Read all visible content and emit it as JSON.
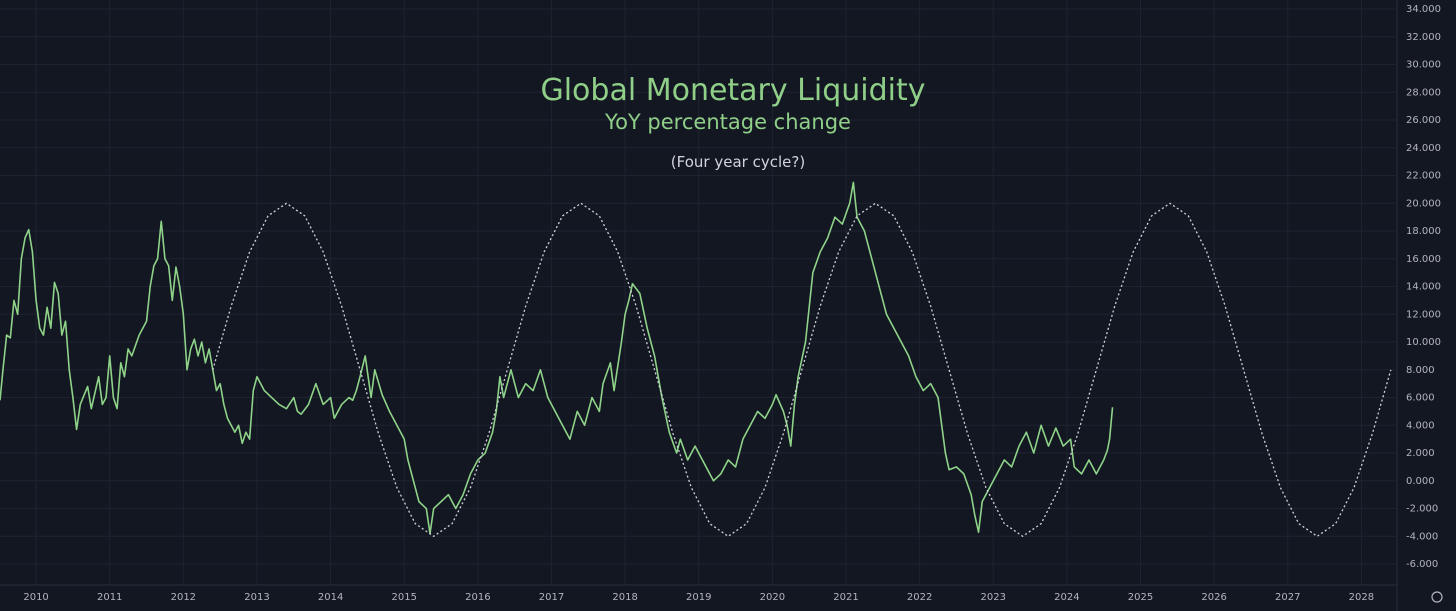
{
  "chart_data": {
    "type": "line",
    "title": "Global Monetary Liquidity",
    "subtitle": "YoY percentage change",
    "annotation": "(Four year cycle?)",
    "xlim": [
      2009.51,
      2028.47
    ],
    "xticks": [
      2010,
      2011,
      2012,
      2013,
      2014,
      2015,
      2016,
      2017,
      2018,
      2019,
      2020,
      2021,
      2022,
      2023,
      2024,
      2025,
      2026,
      2027,
      2028
    ],
    "ylim": [
      -7.51,
      34.65
    ],
    "yticks": [
      {
        "value": -6,
        "label": "-6.000"
      },
      {
        "value": -4,
        "label": "-4.000"
      },
      {
        "value": -2,
        "label": "-2.000"
      },
      {
        "value": 0,
        "label": "0.000"
      },
      {
        "value": 2,
        "label": "2.000"
      },
      {
        "value": 4,
        "label": "4.000"
      },
      {
        "value": 6,
        "label": "6.000"
      },
      {
        "value": 8,
        "label": "8.000"
      },
      {
        "value": 10,
        "label": "10.000"
      },
      {
        "value": 12,
        "label": "12.000"
      },
      {
        "value": 14,
        "label": "14.000"
      },
      {
        "value": 16,
        "label": "16.000"
      },
      {
        "value": 18,
        "label": "18.000"
      },
      {
        "value": 20,
        "label": "20.000"
      },
      {
        "value": 22,
        "label": "22.000"
      },
      {
        "value": 24,
        "label": "24.000"
      },
      {
        "value": 26,
        "label": "26.000"
      },
      {
        "value": 28,
        "label": "28.000"
      },
      {
        "value": 30,
        "label": "30.000"
      },
      {
        "value": 32,
        "label": "32.000"
      },
      {
        "value": 34,
        "label": "34.000"
      }
    ],
    "grid": true,
    "series": [
      {
        "color": "#8fd389",
        "line_style": "solid",
        "x": [
          2009.51,
          2009.55,
          2009.6,
          2009.65,
          2009.7,
          2009.75,
          2009.8,
          2009.85,
          2009.9,
          2009.95,
          2010.0,
          2010.05,
          2010.1,
          2010.15,
          2010.2,
          2010.25,
          2010.3,
          2010.35,
          2010.4,
          2010.45,
          2010.5,
          2010.55,
          2010.6,
          2010.7,
          2010.75,
          2010.85,
          2010.9,
          2010.95,
          2011.0,
          2011.05,
          2011.1,
          2011.15,
          2011.2,
          2011.25,
          2011.3,
          2011.4,
          2011.5,
          2011.55,
          2011.6,
          2011.65,
          2011.7,
          2011.75,
          2011.8,
          2011.85,
          2011.9,
          2011.95,
          2012.0,
          2012.05,
          2012.1,
          2012.15,
          2012.2,
          2012.25,
          2012.3,
          2012.35,
          2012.4,
          2012.45,
          2012.5,
          2012.55,
          2012.6,
          2012.7,
          2012.75,
          2012.8,
          2012.85,
          2012.9,
          2012.95,
          2013.0,
          2013.1,
          2013.2,
          2013.3,
          2013.4,
          2013.5,
          2013.55,
          2013.6,
          2013.7,
          2013.8,
          2013.9,
          2014.0,
          2014.05,
          2014.15,
          2014.25,
          2014.3,
          2014.35,
          2014.4,
          2014.47,
          2014.55,
          2014.6,
          2014.7,
          2014.8,
          2014.9,
          2015.0,
          2015.05,
          2015.1,
          2015.15,
          2015.2,
          2015.3,
          2015.35,
          2015.4,
          2015.5,
          2015.6,
          2015.7,
          2015.8,
          2015.9,
          2016.0,
          2016.1,
          2016.2,
          2016.25,
          2016.3,
          2016.35,
          2016.45,
          2016.55,
          2016.65,
          2016.75,
          2016.85,
          2016.95,
          2017.0,
          2017.1,
          2017.2,
          2017.25,
          2017.35,
          2017.45,
          2017.55,
          2017.65,
          2017.7,
          2017.8,
          2017.85,
          2017.95,
          2018.0,
          2018.05,
          2018.1,
          2018.2,
          2018.3,
          2018.4,
          2018.5,
          2018.6,
          2018.7,
          2018.75,
          2018.85,
          2018.95,
          2019.05,
          2019.15,
          2019.2,
          2019.3,
          2019.4,
          2019.5,
          2019.6,
          2019.7,
          2019.8,
          2019.9,
          2020.0,
          2020.05,
          2020.15,
          2020.2,
          2020.25,
          2020.3,
          2020.35,
          2020.45,
          2020.5,
          2020.55,
          2020.65,
          2020.75,
          2020.85,
          2020.95,
          2021.05,
          2021.1,
          2021.15,
          2021.25,
          2021.35,
          2021.45,
          2021.55,
          2021.65,
          2021.75,
          2021.85,
          2021.95,
          2022.05,
          2022.15,
          2022.25,
          2022.3,
          2022.35,
          2022.4,
          2022.5,
          2022.6,
          2022.7,
          2022.75,
          2022.8,
          2022.85,
          2022.95,
          2023.05,
          2023.15,
          2023.25,
          2023.35,
          2023.45,
          2023.55,
          2023.65,
          2023.75,
          2023.85,
          2023.95,
          2024.05,
          2024.1,
          2024.2,
          2024.3,
          2024.4,
          2024.5,
          2024.55,
          2024.58,
          2024.62
        ],
        "values": [
          5.8,
          8,
          10.5,
          10.3,
          13,
          12,
          16,
          17.5,
          18.1,
          16.5,
          13,
          11,
          10.5,
          12.5,
          11,
          14.3,
          13.5,
          10.5,
          11.5,
          8,
          6,
          3.7,
          5.5,
          6.8,
          5.2,
          7.5,
          5.5,
          6,
          9,
          6,
          5.2,
          8.5,
          7.5,
          9.5,
          9,
          10.5,
          11.5,
          14,
          15.5,
          16,
          18.7,
          16,
          15.5,
          13,
          15.4,
          14,
          12,
          8,
          9.5,
          10.2,
          9,
          10,
          8.5,
          9.5,
          8,
          6.5,
          7,
          5.5,
          4.5,
          3.5,
          4,
          2.7,
          3.5,
          3,
          6.5,
          7.5,
          6.5,
          6,
          5.5,
          5.2,
          6,
          5,
          4.8,
          5.5,
          7,
          5.5,
          6,
          4.5,
          5.5,
          6,
          5.8,
          6.5,
          7.5,
          9,
          6,
          8,
          6.2,
          5,
          4,
          3,
          1.5,
          0.5,
          -0.5,
          -1.5,
          -2,
          -3.8,
          -2,
          -1.5,
          -1,
          -2,
          -1,
          0.5,
          1.5,
          2,
          3.5,
          5,
          7.5,
          6,
          8,
          6,
          7,
          6.5,
          8,
          6,
          5.5,
          4.5,
          3.5,
          3,
          5,
          4,
          6,
          5,
          7,
          8.5,
          6.5,
          10,
          12,
          13,
          14.2,
          13.5,
          11,
          9,
          6,
          3.5,
          2,
          3,
          1.5,
          2.5,
          1.5,
          0.5,
          0,
          0.5,
          1.5,
          1,
          3,
          4,
          5,
          4.5,
          5.5,
          6.2,
          5,
          4,
          2.5,
          5.5,
          7.5,
          10,
          12.5,
          15,
          16.5,
          17.5,
          19,
          18.5,
          20,
          21.5,
          19,
          18,
          16,
          14,
          12,
          11,
          10,
          9,
          7.5,
          6.5,
          7,
          6,
          4,
          2,
          0.8,
          1,
          0.5,
          -1,
          -2.5,
          -3.7,
          -1.5,
          -0.5,
          0.5,
          1.5,
          1,
          2.5,
          3.5,
          2,
          4,
          2.5,
          3.8,
          2.5,
          3,
          1,
          0.5,
          1.5,
          0.5,
          1.5,
          2.2,
          3,
          5.3
        ]
      },
      {
        "color": "#d1d4dc",
        "line_style": "dotted",
        "x": [
          2012.4,
          2012.65,
          2012.9,
          2013.15,
          2013.4,
          2013.65,
          2013.9,
          2014.15,
          2014.4,
          2014.65,
          2014.9,
          2015.15,
          2015.4,
          2015.65,
          2015.9,
          2016.15,
          2016.4,
          2016.65,
          2016.9,
          2017.15,
          2017.4,
          2017.65,
          2017.9,
          2018.15,
          2018.4,
          2018.65,
          2018.9,
          2019.15,
          2019.4,
          2019.65,
          2019.9,
          2020.15,
          2020.4,
          2020.65,
          2020.9,
          2021.15,
          2021.4,
          2021.65,
          2021.9,
          2022.15,
          2022.4,
          2022.65,
          2022.9,
          2023.15,
          2023.4,
          2023.65,
          2023.9,
          2024.15,
          2024.4,
          2024.65,
          2024.9,
          2025.15,
          2025.4,
          2025.65,
          2025.9,
          2026.15,
          2026.4,
          2026.65,
          2026.9,
          2027.15,
          2027.4,
          2027.65,
          2027.9,
          2028.15,
          2028.4
        ],
        "values": [
          8,
          12.59,
          16.49,
          19.09,
          20,
          19.09,
          16.49,
          12.59,
          8,
          3.41,
          -0.49,
          -3.09,
          -4,
          -3.09,
          -0.49,
          3.41,
          8,
          12.59,
          16.49,
          19.09,
          20,
          19.09,
          16.49,
          12.59,
          8,
          3.41,
          -0.49,
          -3.09,
          -4,
          -3.09,
          -0.49,
          3.41,
          8,
          12.59,
          16.49,
          19.09,
          20,
          19.09,
          16.49,
          12.59,
          8,
          3.41,
          -0.49,
          -3.09,
          -4,
          -3.09,
          -0.49,
          3.41,
          8,
          12.59,
          16.49,
          19.09,
          20,
          19.09,
          16.49,
          12.59,
          8,
          3.41,
          -0.49,
          -3.09,
          -4,
          -3.09,
          -0.49,
          3.41,
          8
        ]
      }
    ]
  }
}
